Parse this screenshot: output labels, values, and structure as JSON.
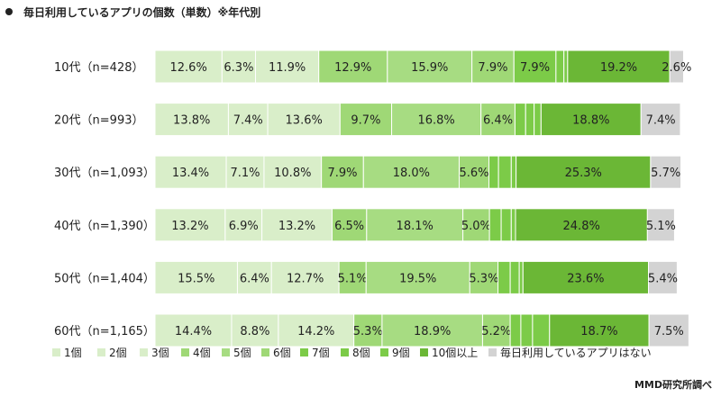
{
  "title": "毎日利用しているアプリの個数（単数）※年代別",
  "credit": "MMD研究所調べ",
  "colors": [
    "#d9eec9",
    "#d9eec9",
    "#d9eec9",
    "#9fd876",
    "#a7dc82",
    "#9fd876",
    "#7ccb48",
    "#7ccb48",
    "#7ccb48",
    "#6bb736",
    "#d3d3d3"
  ],
  "chart_data": {
    "type": "bar",
    "orientation": "horizontal",
    "stacked": true,
    "xlim": [
      0,
      100
    ],
    "grid": false,
    "legend_position": "bottom",
    "categories": [
      "10代（n=428）",
      "20代（n=993）",
      "30代（n=1,093）",
      "40代（n=1,390）",
      "50代（n=1,404）",
      "60代（n=1,165）"
    ],
    "series": [
      {
        "name": "1個",
        "values": [
          12.6,
          13.8,
          13.4,
          13.2,
          15.5,
          14.4
        ],
        "labels": [
          "12.6%",
          "13.8%",
          "13.4%",
          "13.2%",
          "15.5%",
          "14.4%"
        ]
      },
      {
        "name": "2個",
        "values": [
          6.3,
          7.4,
          7.1,
          6.9,
          6.4,
          8.8
        ],
        "labels": [
          "6.3%",
          "7.4%",
          "7.1%",
          "6.9%",
          "6.4%",
          "8.8%"
        ]
      },
      {
        "name": "3個",
        "values": [
          11.9,
          13.6,
          10.8,
          13.2,
          12.7,
          14.2
        ],
        "labels": [
          "11.9%",
          "13.6%",
          "10.8%",
          "13.2%",
          "12.7%",
          "14.2%"
        ]
      },
      {
        "name": "4個",
        "values": [
          12.9,
          9.7,
          7.9,
          6.5,
          5.1,
          5.3
        ],
        "labels": [
          "12.9%",
          "9.7%",
          "7.9%",
          "6.5%",
          "5.1%",
          "5.3%"
        ]
      },
      {
        "name": "5個",
        "values": [
          15.9,
          16.8,
          18.0,
          18.1,
          19.5,
          18.9
        ],
        "labels": [
          "15.9%",
          "16.8%",
          "18.0%",
          "18.1%",
          "19.5%",
          "18.9%"
        ]
      },
      {
        "name": "6個",
        "values": [
          7.9,
          6.4,
          5.6,
          5.0,
          5.3,
          5.2
        ],
        "labels": [
          "7.9%",
          "6.4%",
          "5.6%",
          "5.0%",
          "5.3%",
          "5.2%"
        ]
      },
      {
        "name": "7個",
        "values": [
          7.9,
          2.0,
          1.8,
          2.2,
          2.3,
          2.0
        ],
        "labels": [
          "7.9%",
          "",
          "",
          "",
          "",
          ""
        ]
      },
      {
        "name": "8個",
        "values": [
          1.5,
          1.6,
          2.4,
          1.9,
          1.7,
          2.2
        ],
        "labels": [
          "",
          "",
          "",
          "",
          "",
          ""
        ]
      },
      {
        "name": "9個",
        "values": [
          0.7,
          1.3,
          0.9,
          0.8,
          0.7,
          3.2
        ],
        "labels": [
          "",
          "",
          "",
          "",
          "",
          ""
        ]
      },
      {
        "name": "10個以上",
        "values": [
          19.2,
          18.8,
          25.3,
          24.8,
          23.6,
          18.7
        ],
        "labels": [
          "19.2%",
          "18.8%",
          "25.3%",
          "24.8%",
          "23.6%",
          "18.7%"
        ]
      },
      {
        "name": "毎日利用しているアプリはない",
        "values": [
          2.6,
          7.4,
          5.7,
          5.1,
          5.4,
          7.5
        ],
        "labels": [
          "2.6%",
          "7.4%",
          "5.7%",
          "5.1%",
          "5.4%",
          "7.5%"
        ]
      }
    ]
  }
}
